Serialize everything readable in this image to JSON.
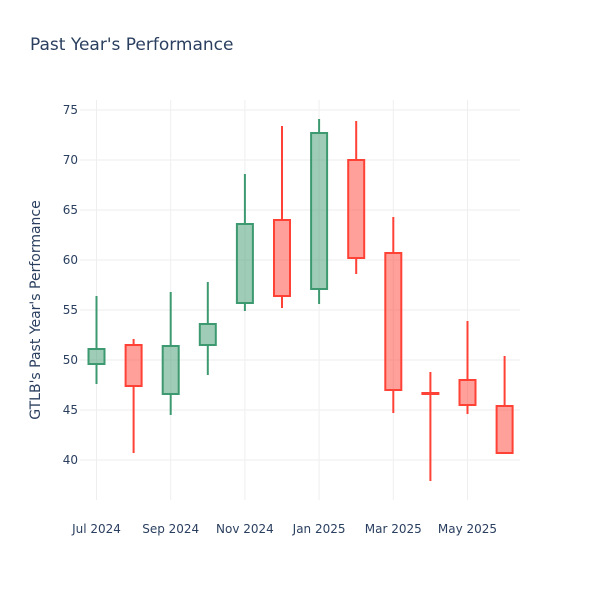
{
  "chart_data": {
    "type": "candlestick",
    "title": "Past Year's Performance",
    "xlabel": "",
    "ylabel": "GTLB's Past Year's Performance",
    "x_ticks": [
      "Jul 2024",
      "Sep 2024",
      "Nov 2024",
      "Jan 2025",
      "Mar 2025",
      "May 2025"
    ],
    "y_ticks": [
      40,
      45,
      50,
      55,
      60,
      65,
      70,
      75
    ],
    "ylim": [
      36,
      76
    ],
    "grid": true,
    "colors": {
      "increasing": "#3D9970",
      "decreasing": "#FF4136",
      "title": "#2a3f5f",
      "grid": "#eeeeee"
    },
    "candles": [
      {
        "period": "Jul 2024",
        "open": 49.6,
        "high": 56.4,
        "low": 47.6,
        "close": 51.1
      },
      {
        "period": "Aug 2024",
        "open": 51.5,
        "high": 52.1,
        "low": 40.7,
        "close": 47.4
      },
      {
        "period": "Sep 2024",
        "open": 46.6,
        "high": 56.8,
        "low": 44.5,
        "close": 51.4
      },
      {
        "period": "Oct 2024",
        "open": 51.5,
        "high": 57.8,
        "low": 48.5,
        "close": 53.6
      },
      {
        "period": "Nov 2024",
        "open": 55.7,
        "high": 68.6,
        "low": 54.9,
        "close": 63.6
      },
      {
        "period": "Dec 2024",
        "open": 64.0,
        "high": 73.4,
        "low": 55.2,
        "close": 56.4
      },
      {
        "period": "Jan 2025",
        "open": 57.1,
        "high": 74.1,
        "low": 55.6,
        "close": 72.7
      },
      {
        "period": "Feb 2025",
        "open": 70.0,
        "high": 73.9,
        "low": 58.6,
        "close": 60.2
      },
      {
        "period": "Mar 2025",
        "open": 60.7,
        "high": 64.3,
        "low": 44.7,
        "close": 47.0
      },
      {
        "period": "Apr 2025",
        "open": 46.7,
        "high": 48.8,
        "low": 37.9,
        "close": 46.6
      },
      {
        "period": "May 2025",
        "open": 48.0,
        "high": 53.9,
        "low": 44.6,
        "close": 45.5
      },
      {
        "period": "Jun 2025",
        "open": 45.4,
        "high": 50.4,
        "low": 40.6,
        "close": 40.7
      }
    ]
  }
}
